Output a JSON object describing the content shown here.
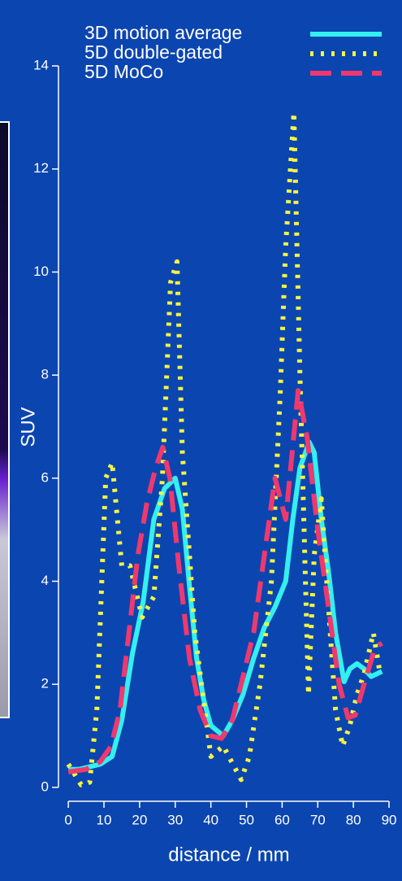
{
  "chart_data": {
    "type": "line",
    "x_label": "distance / mm",
    "y_label": "SUV",
    "xlim": [
      -1.4,
      92.5
    ],
    "ylim": [
      -0.27,
      15.2
    ],
    "xticks": [
      0,
      10,
      20,
      30,
      40,
      50,
      60,
      70,
      80,
      90
    ],
    "yticks": [
      0,
      2,
      4,
      6,
      8,
      10,
      12,
      14
    ],
    "legend": "top-right",
    "series": [
      {
        "name": "3D motion average",
        "color": "#33f0f0",
        "style": "solid",
        "x": [
          0,
          3,
          6,
          9,
          12.3,
          15,
          18,
          21,
          24,
          27,
          30,
          32,
          34,
          36,
          38,
          40,
          43.5,
          46,
          49,
          52,
          55,
          58,
          61,
          63,
          65,
          67.6,
          69,
          71,
          73,
          75,
          77.4,
          79,
          81,
          83,
          85,
          88
        ],
        "values": [
          0.35,
          0.35,
          0.4,
          0.45,
          0.6,
          1.3,
          2.6,
          3.6,
          5.2,
          5.8,
          6.0,
          5.4,
          3.9,
          2.5,
          1.7,
          1.2,
          1.0,
          1.3,
          1.8,
          2.5,
          3.1,
          3.5,
          4.0,
          5.2,
          6.2,
          6.7,
          6.5,
          5.2,
          4.2,
          3.0,
          2.05,
          2.3,
          2.4,
          2.3,
          2.15,
          2.25
        ]
      },
      {
        "name": "5D double-gated",
        "color": "#f5f542",
        "style": "dotted",
        "x": [
          0,
          3.6,
          6,
          8,
          10.5,
          12.3,
          15,
          17.3,
          20.7,
          24,
          26.4,
          28.7,
          30.5,
          32,
          35.5,
          40,
          43.5,
          45.8,
          48.5,
          50.8,
          53.8,
          57,
          59.5,
          61,
          63.3,
          65,
          67.4,
          69,
          71,
          73,
          75,
          77,
          79,
          81,
          83,
          85.6,
          87.5
        ],
        "values": [
          0.45,
          0.05,
          0.1,
          1.5,
          6.0,
          6.3,
          4.3,
          4.3,
          3.3,
          3.7,
          6.0,
          9.8,
          10.2,
          6.5,
          3.0,
          0.6,
          0.8,
          0.5,
          0.15,
          0.6,
          2.0,
          4.0,
          7.7,
          10.5,
          13.1,
          8.0,
          1.8,
          4.5,
          5.6,
          3.5,
          1.5,
          0.8,
          1.2,
          1.8,
          2.2,
          3.0,
          2.2
        ]
      },
      {
        "name": "5D MoCo",
        "color": "#f0386e",
        "style": "dashed",
        "x": [
          0,
          5,
          9,
          12,
          14.5,
          17,
          19.5,
          22,
          24.5,
          26.5,
          28.5,
          31,
          34,
          37,
          40,
          43,
          46,
          48.5,
          52,
          55,
          58,
          61,
          64.5,
          67,
          70,
          73,
          76,
          78.5,
          80.5,
          83,
          86,
          88
        ],
        "values": [
          0.3,
          0.35,
          0.5,
          0.8,
          1.5,
          3.0,
          4.5,
          5.5,
          6.2,
          6.6,
          6.0,
          4.3,
          2.5,
          1.5,
          1.0,
          0.95,
          1.3,
          2.0,
          3.0,
          4.5,
          6.0,
          5.2,
          7.7,
          6.8,
          5.0,
          3.5,
          2.0,
          1.35,
          1.4,
          2.0,
          2.7,
          2.8
        ]
      }
    ]
  }
}
